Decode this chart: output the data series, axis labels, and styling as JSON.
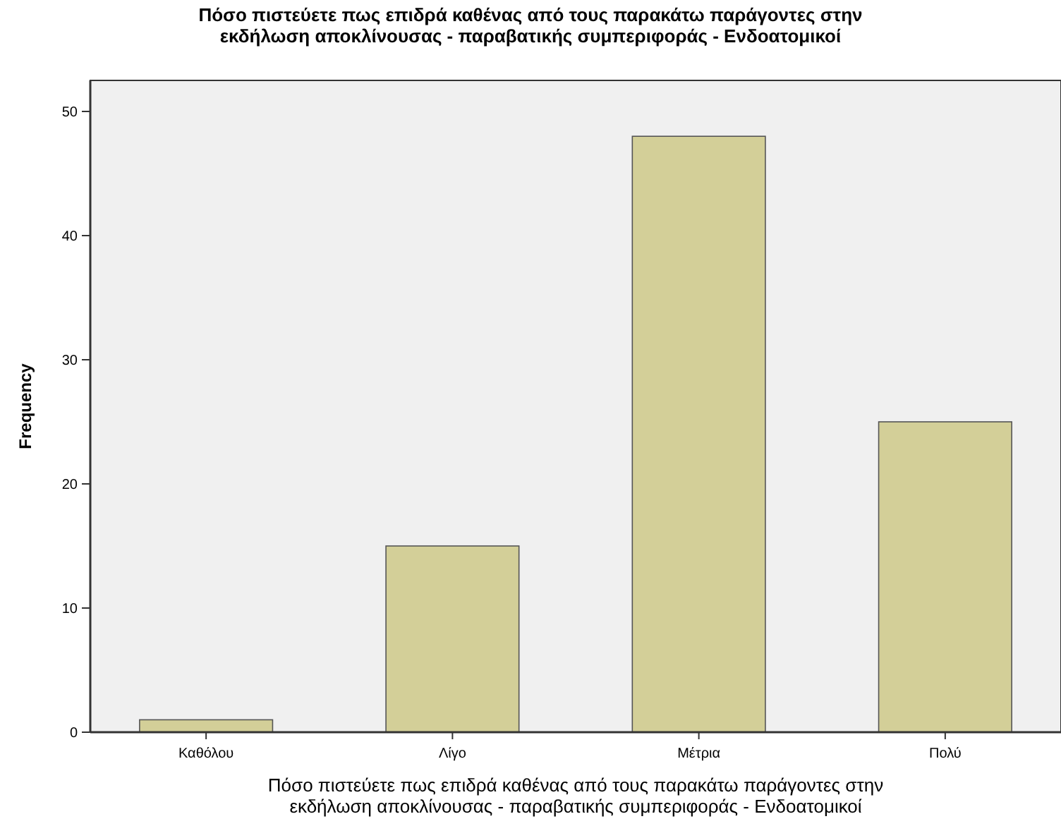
{
  "chart_data": {
    "type": "bar",
    "title": "Πόσο πιστεύετε πως επιδρά καθένας από τους παρακάτω παράγοντες στην\nεκδήλωση αποκλίνουσας - παραβατικής συμπεριφοράς - Ενδοατομικοί",
    "xlabel": "Πόσο πιστεύετε πως επιδρά καθένας από τους παρακάτω παράγοντες στην\nεκδήλωση αποκλίνουσας - παραβατικής συμπεριφοράς - Ενδοατομικοί",
    "ylabel": "Frequency",
    "categories": [
      "Καθόλου",
      "Λίγο",
      "Μέτρια",
      "Πολύ"
    ],
    "values": [
      1,
      15,
      48,
      25
    ],
    "color": "#d3cf98",
    "ylim": [
      0,
      52.5
    ],
    "yticks": [
      0,
      10,
      20,
      30,
      40,
      50
    ],
    "grid": false
  }
}
